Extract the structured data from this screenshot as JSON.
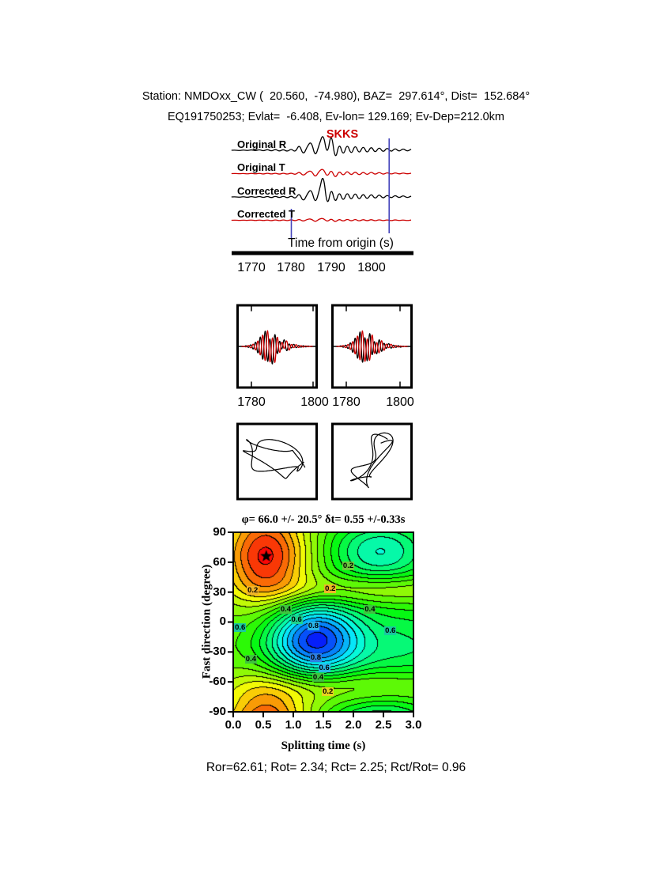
{
  "header": {
    "line1": "Station: NMDOxx_CW (  20.560,  -74.980), BAZ=  297.614°, Dist=  152.684°",
    "line2": "EQ191750253; Evlat=  -6.408, Ev-lon= 129.169; Ev-Dep=212.0km"
  },
  "seismograms": {
    "phase_label": "SKKS",
    "axis_label": "Time from origin (s)",
    "tick_labels": [
      "1770",
      "1780",
      "1790",
      "1800"
    ],
    "trace_labels": [
      "Original R",
      "Original T",
      "Corrected R",
      "Corrected T"
    ]
  },
  "compare_ticks": [
    "1780",
    "1800",
    "1780",
    "1800"
  ],
  "contour": {
    "title": "φ= 66.0 +/- 20.5° δt= 0.55 +/-0.33s",
    "ylabel": "Fast direction (degree)",
    "xlabel": "Splitting time (s)",
    "y_tick_labels": [
      "90",
      "60",
      "30",
      "0",
      "-30",
      "-60",
      "-90"
    ],
    "x_tick_labels": [
      "0.0",
      "0.5",
      "1.0",
      "1.5",
      "2.0",
      "2.5",
      "3.0"
    ]
  },
  "footer": "Ror=62.61; Rot= 2.34; Rct= 2.25; Rct/Rot= 0.96",
  "results": {
    "Ror": 62.61,
    "Rot": 2.34,
    "Rct": 2.25,
    "Rct_over_Rot": 0.96
  },
  "best_fit": {
    "phi_deg": 66.0,
    "phi_err_deg": 20.5,
    "dt_s": 0.55,
    "dt_err_s": 0.33
  },
  "colors": {
    "trace_r": "#000000",
    "trace_t": "#cc0000",
    "phase": "#cc0000",
    "marker": "#4444bb"
  },
  "chart_data": [
    {
      "type": "line",
      "name": "seismogram-original-r",
      "x_range": [
        1765,
        1810
      ],
      "color": "#000000",
      "values": [
        0.0,
        0.01,
        -0.02,
        0.02,
        -0.02,
        0.03,
        -0.03,
        0.04,
        -0.04,
        0.05,
        -0.05,
        0.06,
        -0.06,
        0.05,
        -0.07,
        0.08,
        -0.1,
        0.3,
        -0.25,
        0.2,
        0.45,
        -0.35,
        0.3,
        0.85,
        -0.3,
        0.95,
        -0.55,
        0.4,
        -0.3,
        0.35,
        -0.25,
        0.3,
        -0.2,
        0.25,
        -0.18,
        0.22,
        -0.15,
        0.18,
        -0.12,
        0.15,
        -0.1,
        0.12,
        -0.08,
        0.1,
        -0.06,
        0.05
      ]
    },
    {
      "type": "line",
      "name": "seismogram-original-t",
      "x_range": [
        1765,
        1810
      ],
      "color": "#cc0000",
      "values": [
        0.0,
        0.01,
        -0.01,
        0.01,
        -0.02,
        0.02,
        -0.02,
        0.02,
        -0.03,
        0.03,
        -0.03,
        0.03,
        -0.04,
        0.03,
        -0.04,
        0.04,
        -0.06,
        0.1,
        -0.12,
        0.08,
        0.15,
        -0.2,
        0.14,
        0.25,
        -0.18,
        0.22,
        -0.25,
        0.15,
        -0.12,
        0.15,
        -0.1,
        0.12,
        -0.1,
        0.1,
        -0.08,
        0.1,
        -0.06,
        0.08,
        -0.05,
        0.06,
        -0.04,
        0.05,
        -0.03,
        0.04,
        -0.02,
        0.02
      ]
    },
    {
      "type": "line",
      "name": "seismogram-corrected-r",
      "x_range": [
        1765,
        1810
      ],
      "color": "#000000",
      "values": [
        0.0,
        0.01,
        -0.02,
        0.02,
        -0.03,
        0.03,
        -0.03,
        0.04,
        -0.04,
        0.04,
        -0.05,
        0.05,
        -0.05,
        0.05,
        -0.06,
        0.07,
        -0.1,
        0.2,
        -0.25,
        0.15,
        0.4,
        -0.35,
        0.3,
        1.2,
        -0.55,
        0.5,
        -0.35,
        0.3,
        -0.25,
        0.28,
        -0.2,
        0.25,
        -0.18,
        0.2,
        -0.15,
        0.18,
        -0.12,
        0.15,
        -0.1,
        0.12,
        -0.08,
        0.1,
        -0.06,
        0.08,
        -0.05,
        0.04
      ]
    },
    {
      "type": "line",
      "name": "seismogram-corrected-t",
      "x_range": [
        1765,
        1810
      ],
      "color": "#cc0000",
      "values": [
        0.0,
        0.01,
        -0.01,
        0.01,
        -0.01,
        0.02,
        -0.02,
        0.02,
        -0.02,
        0.02,
        -0.03,
        0.03,
        -0.03,
        0.03,
        -0.03,
        0.04,
        -0.04,
        0.06,
        -0.06,
        0.05,
        0.07,
        -0.09,
        0.07,
        0.1,
        -0.08,
        0.09,
        -0.1,
        0.07,
        -0.06,
        0.07,
        -0.05,
        0.06,
        -0.05,
        0.05,
        -0.04,
        0.05,
        -0.04,
        0.04,
        -0.03,
        0.03,
        -0.03,
        0.03,
        -0.02,
        0.02,
        -0.02,
        0.01
      ]
    },
    {
      "type": "line",
      "name": "window-markers",
      "x_values": [
        1780,
        1804.5
      ]
    },
    {
      "type": "line",
      "name": "waveform-compare-1",
      "x_range": [
        1776,
        1806
      ],
      "x_tick_values": [
        1780,
        1800
      ],
      "series": [
        {
          "name": "radial",
          "color": "#000000",
          "values": [
            0.0,
            -0.02,
            0.04,
            -0.06,
            0.1,
            -0.16,
            0.26,
            -0.4,
            0.58,
            -0.78,
            0.92,
            -0.88,
            0.62,
            -0.96,
            0.72,
            -0.46,
            0.32,
            -0.22,
            0.36,
            -0.26,
            0.16,
            -0.11,
            0.12,
            -0.08,
            0.06,
            -0.05,
            0.04,
            -0.03,
            0.02,
            -0.01,
            0.0
          ]
        },
        {
          "name": "matched",
          "color": "#cc0000",
          "values": [
            0.0,
            0.01,
            -0.03,
            0.06,
            -0.09,
            0.14,
            -0.22,
            0.34,
            -0.52,
            0.7,
            -0.86,
            0.96,
            -0.92,
            0.66,
            -0.88,
            0.58,
            -0.38,
            0.26,
            -0.18,
            0.3,
            -0.22,
            0.13,
            -0.09,
            0.1,
            -0.07,
            0.05,
            -0.04,
            0.03,
            -0.02,
            0.01,
            0.0
          ]
        }
      ]
    },
    {
      "type": "line",
      "name": "waveform-compare-2",
      "x_range": [
        1776,
        1806
      ],
      "x_tick_values": [
        1780,
        1800
      ],
      "series": [
        {
          "name": "radial",
          "color": "#000000",
          "values": [
            0.0,
            -0.01,
            0.03,
            -0.05,
            0.08,
            -0.13,
            0.22,
            -0.36,
            0.52,
            -0.72,
            0.88,
            -0.92,
            0.66,
            -0.84,
            0.76,
            -0.52,
            0.36,
            -0.44,
            0.4,
            -0.3,
            0.2,
            -0.14,
            0.16,
            -0.11,
            0.08,
            -0.06,
            0.05,
            -0.04,
            0.02,
            -0.01,
            0.0
          ]
        },
        {
          "name": "matched",
          "color": "#cc0000",
          "values": [
            0.0,
            0.01,
            -0.02,
            0.05,
            -0.08,
            0.12,
            -0.19,
            0.3,
            -0.46,
            0.64,
            -0.82,
            0.94,
            -0.88,
            0.6,
            -0.8,
            0.68,
            -0.44,
            0.3,
            -0.38,
            0.34,
            -0.24,
            0.15,
            -0.1,
            0.12,
            -0.08,
            0.06,
            -0.04,
            0.03,
            -0.02,
            0.01,
            0.0
          ]
        }
      ]
    },
    {
      "type": "scatter",
      "name": "particle-motion-original",
      "params": {
        "cx": 0.47,
        "cy": 0.55,
        "r1x": 0.38,
        "r1y": 0.16,
        "rot": -20,
        "r2": 0.08,
        "f2": 3.3,
        "f3": 2.6,
        "turns": 2
      }
    },
    {
      "type": "scatter",
      "name": "particle-motion-corrected",
      "params": {
        "cx": 0.5,
        "cy": 0.5,
        "r1x": 0.34,
        "r1y": 0.09,
        "rot": 60,
        "r2": 0.09,
        "f2": 3.1,
        "f3": 2.3,
        "turns": 2
      }
    },
    {
      "type": "heatmap",
      "name": "splitting-error-surface",
      "title": "φ= 66.0 +/- 20.5° δt= 0.55 +/-0.33s",
      "xlabel": "Splitting time (s)",
      "ylabel": "Fast direction (degree)",
      "xlim": [
        0,
        3
      ],
      "ylim": [
        -90,
        90
      ],
      "best": {
        "dt": 0.55,
        "phi": 66
      },
      "field": {
        "base": 0.25,
        "vmin": -0.9,
        "vmax": 1.05,
        "step": 0.1,
        "blobs": [
          {
            "x": 0.55,
            "phi": 66,
            "amp": 0.78,
            "sx": 0.5,
            "sp": 33
          },
          {
            "x": 1.35,
            "phi": -18,
            "amp": -1.05,
            "sx": 0.55,
            "sp": 27
          },
          {
            "x": 2.45,
            "phi": 70,
            "amp": -0.55,
            "sx": 0.6,
            "sp": 24
          },
          {
            "x": 2.9,
            "phi": -25,
            "amp": -0.35,
            "sx": 0.8,
            "sp": 30
          },
          {
            "x": 2.0,
            "phi": -66,
            "amp": 0.3,
            "sx": 1.3,
            "sp": 13
          },
          {
            "x": 2.3,
            "phi": 32,
            "amp": 0.3,
            "sx": 1.2,
            "sp": 11
          }
        ]
      },
      "contour_labels": [
        {
          "x": 0.33,
          "phi": 31,
          "text": "0.2",
          "bg": "#f0b429"
        },
        {
          "x": 0.12,
          "phi": -6,
          "text": "0.6",
          "bg": "#19c8a0"
        },
        {
          "x": 0.88,
          "phi": 12,
          "text": "0.4",
          "bg": "#3ec43e"
        },
        {
          "x": 1.06,
          "phi": 2,
          "text": "0.6",
          "bg": "#1fd08c"
        },
        {
          "x": 1.34,
          "phi": -4,
          "text": "0.8",
          "bg": "#2bb6e8"
        },
        {
          "x": 1.62,
          "phi": 33,
          "text": "0.2",
          "bg": "#f0b429"
        },
        {
          "x": 2.28,
          "phi": 12,
          "text": "0.4",
          "bg": "#3ec43e"
        },
        {
          "x": 2.62,
          "phi": -9,
          "text": "0.6",
          "bg": "#19c8a0"
        },
        {
          "x": 1.38,
          "phi": -36,
          "text": "0.8",
          "bg": "#2e7fe0"
        },
        {
          "x": 1.52,
          "phi": -46,
          "text": "0.6",
          "bg": "#2bb6e8"
        },
        {
          "x": 1.42,
          "phi": -56,
          "text": "0.4",
          "bg": "#3ec43e"
        },
        {
          "x": 1.58,
          "phi": -70,
          "text": "0.2",
          "bg": "#e8d31f"
        },
        {
          "x": 0.3,
          "phi": -38,
          "text": "0.4",
          "bg": "#3ec43e"
        },
        {
          "x": 1.92,
          "phi": 56,
          "text": "0.2",
          "bg": "#6cc83c"
        }
      ]
    }
  ]
}
